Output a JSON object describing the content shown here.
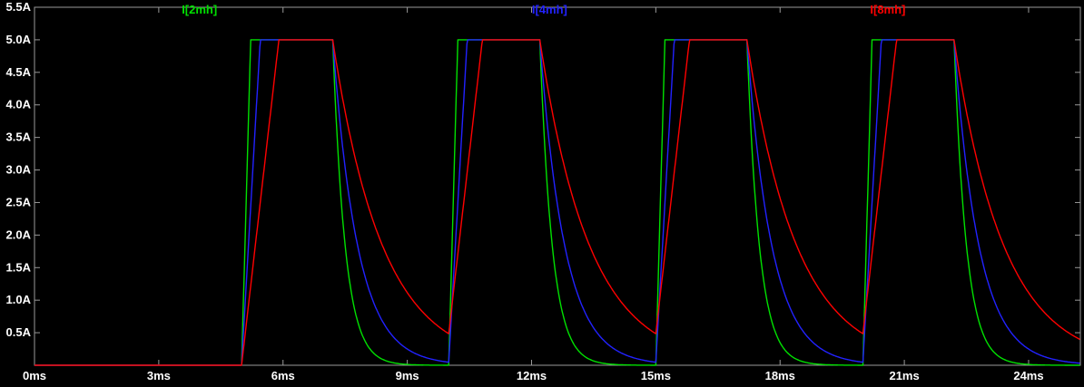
{
  "window": {
    "background": "#000000",
    "frame_color": "#9a9a9a",
    "label_color": "#ffffff"
  },
  "legend": [
    {
      "label": "I[2mh]",
      "color": "#00e000"
    },
    {
      "label": "I[4mh]",
      "color": "#2222ff"
    },
    {
      "label": "I[8mh]",
      "color": "#ff0000"
    }
  ],
  "axes": {
    "x": {
      "ticks": [
        "0ms",
        "3ms",
        "6ms",
        "9ms",
        "12ms",
        "15ms",
        "18ms",
        "21ms",
        "24ms"
      ],
      "values_ms": [
        0,
        3,
        6,
        9,
        12,
        15,
        18,
        21,
        24
      ],
      "range_ms": [
        0,
        25.25
      ]
    },
    "y": {
      "ticks": [
        "5.5A",
        "5.0A",
        "4.5A",
        "4.0A",
        "3.5A",
        "3.0A",
        "2.5A",
        "2.0A",
        "1.5A",
        "1.0A",
        "0.5A"
      ],
      "values_a": [
        5.5,
        5.0,
        4.5,
        4.0,
        3.5,
        3.0,
        2.5,
        2.0,
        1.5,
        1.0,
        0.5
      ],
      "range_a": [
        0,
        5.5
      ]
    }
  },
  "chart_data": {
    "type": "line",
    "title": "",
    "xlabel": "",
    "ylabel": "",
    "xlim_ms": [
      0,
      25.25
    ],
    "ylim_a": [
      0,
      5.5
    ],
    "grid": false,
    "legend_position": "top",
    "pulse_model": {
      "first_pulse_start_ms": 5,
      "period_ms": 5,
      "on_duration_ms": 2.2,
      "peak_current_a": 5.0,
      "num_pulses": 4
    },
    "series": [
      {
        "name": "I[2mh]",
        "color": "#00e000",
        "rise_time_ms": 0.22,
        "decay_tau_ms": 0.3
      },
      {
        "name": "I[4mh]",
        "color": "#2222ff",
        "rise_time_ms": 0.45,
        "decay_tau_ms": 0.6
      },
      {
        "name": "I[8mh]",
        "color": "#ff0000",
        "rise_time_ms": 0.9,
        "decay_tau_ms": 1.2
      }
    ]
  }
}
